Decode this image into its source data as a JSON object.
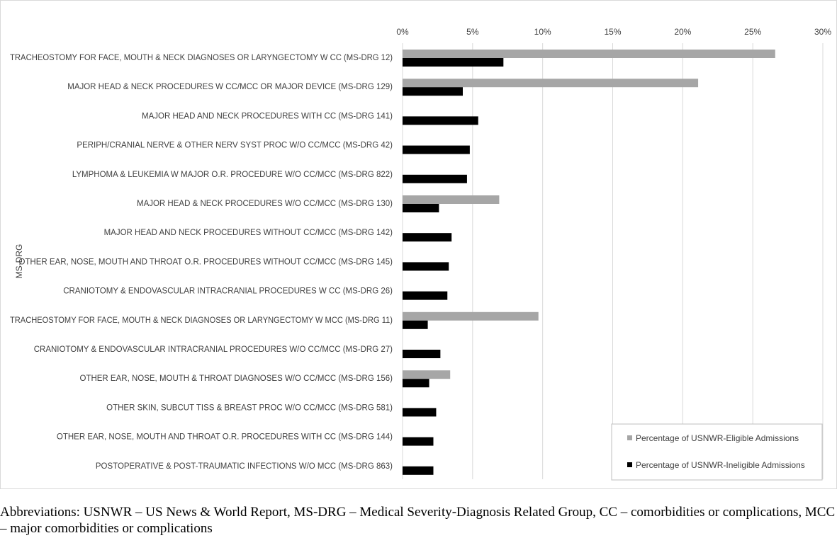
{
  "chart_data": {
    "type": "bar",
    "orientation": "horizontal",
    "categories": [
      "TRACHEOSTOMY FOR FACE, MOUTH & NECK DIAGNOSES OR LARYNGECTOMY W CC (MS-DRG 12)",
      "MAJOR HEAD & NECK PROCEDURES W CC/MCC OR MAJOR DEVICE (MS-DRG 129)",
      "MAJOR HEAD AND NECK PROCEDURES WITH CC (MS-DRG 141)",
      "PERIPH/CRANIAL NERVE & OTHER NERV SYST PROC W/O CC/MCC (MS-DRG 42)",
      "LYMPHOMA & LEUKEMIA W MAJOR O.R. PROCEDURE W/O CC/MCC (MS-DRG 822)",
      "MAJOR HEAD & NECK PROCEDURES W/O CC/MCC (MS-DRG 130)",
      "MAJOR HEAD AND NECK PROCEDURES WITHOUT CC/MCC (MS-DRG 142)",
      "OTHER EAR, NOSE, MOUTH AND THROAT O.R. PROCEDURES WITHOUT CC/MCC (MS-DRG 145)",
      "CRANIOTOMY & ENDOVASCULAR INTRACRANIAL PROCEDURES W CC (MS-DRG 26)",
      "TRACHEOSTOMY FOR FACE, MOUTH & NECK DIAGNOSES OR LARYNGECTOMY W MCC (MS-DRG 11)",
      "CRANIOTOMY & ENDOVASCULAR INTRACRANIAL PROCEDURES W/O CC/MCC (MS-DRG 27)",
      "OTHER EAR, NOSE, MOUTH & THROAT DIAGNOSES W/O CC/MCC (MS-DRG 156)",
      "OTHER SKIN, SUBCUT TISS & BREAST PROC W/O CC/MCC (MS-DRG 581)",
      "OTHER EAR, NOSE, MOUTH AND THROAT O.R. PROCEDURES WITH CC (MS-DRG 144)",
      "POSTOPERATIVE & POST-TRAUMATIC INFECTIONS W/O MCC (MS-DRG 863)"
    ],
    "series": [
      {
        "name": "Percentage of USNWR-Eligible Admissions",
        "color": "#a6a6a6",
        "values": [
          26.6,
          21.1,
          0,
          0,
          0,
          6.9,
          0,
          0,
          0,
          9.7,
          0,
          3.4,
          0,
          0,
          0
        ]
      },
      {
        "name": "Percentage of USNWR-Ineligible Admissions",
        "color": "#000000",
        "values": [
          7.2,
          4.3,
          5.4,
          4.8,
          4.6,
          2.6,
          3.5,
          3.3,
          3.2,
          1.8,
          2.7,
          1.9,
          2.4,
          2.2,
          2.2
        ]
      }
    ],
    "xlim": [
      0,
      30
    ],
    "x_ticks": [
      "0%",
      "5%",
      "10%",
      "15%",
      "20%",
      "25%",
      "30%"
    ],
    "x_tick_values": [
      0,
      5,
      10,
      15,
      20,
      25,
      30
    ],
    "x_axis_position": "top",
    "ylabel": "MS-DRG",
    "grid": true,
    "legend_position": "bottom-right"
  },
  "footnote": "Abbreviations: USNWR – US News & World Report, MS-DRG – Medical Severity-Diagnosis Related Group, CC – comorbidities or complications, MCC – major comorbidities or complications"
}
